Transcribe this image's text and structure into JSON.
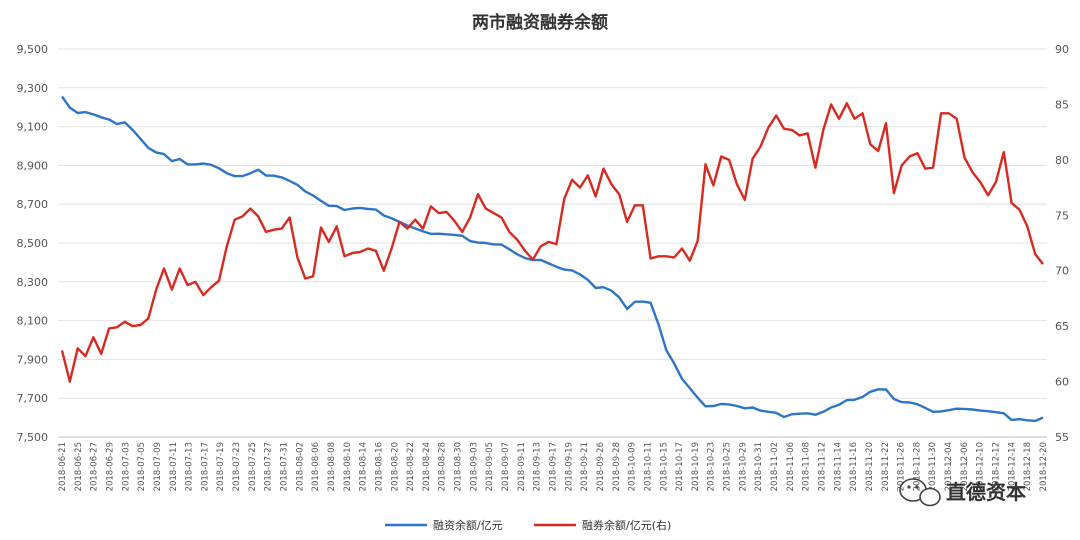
{
  "chart_data": {
    "type": "line",
    "title": "两市融资融券余额",
    "y_left": {
      "ticks": [
        "7,500",
        "7,700",
        "7,900",
        "8,100",
        "8,300",
        "8,500",
        "8,700",
        "8,900",
        "9,100",
        "9,300",
        "9,500"
      ],
      "min": 7500,
      "max": 9500
    },
    "y_right": {
      "ticks": [
        "55",
        "60",
        "65",
        "70",
        "75",
        "80",
        "85",
        "90"
      ],
      "min": 55,
      "max": 90
    },
    "grid": true,
    "legend_position": "bottom",
    "x_labels": [
      "2018-06-21",
      "2018-06-25",
      "2018-06-27",
      "2018-06-29",
      "2018-07-03",
      "2018-07-05",
      "2018-07-09",
      "2018-07-11",
      "2018-07-13",
      "2018-07-17",
      "2018-07-19",
      "2018-07-23",
      "2018-07-25",
      "2018-07-27",
      "2018-07-31",
      "2018-08-02",
      "2018-08-06",
      "2018-08-08",
      "2018-08-10",
      "2018-08-14",
      "2018-08-16",
      "2018-08-20",
      "2018-08-22",
      "2018-08-24",
      "2018-08-28",
      "2018-08-30",
      "2018-09-03",
      "2018-09-05",
      "2018-09-07",
      "2018-09-11",
      "2018-09-13",
      "2018-09-17",
      "2018-09-19",
      "2018-09-21",
      "2018-09-26",
      "2018-09-28",
      "2018-10-09",
      "2018-10-11",
      "2018-10-15",
      "2018-10-17",
      "2018-10-19",
      "2018-10-23",
      "2018-10-25",
      "2018-10-29",
      "2018-10-31",
      "2018-11-02",
      "2018-11-06",
      "2018-11-08",
      "2018-11-12",
      "2018-11-14",
      "2018-11-16",
      "2018-11-20",
      "2018-11-22",
      "2018-11-26",
      "2018-11-28",
      "2018-11-30",
      "2018-12-04",
      "2018-12-06",
      "2018-12-10",
      "2018-12-12",
      "2018-12-14",
      "2018-12-18",
      "2018-12-20"
    ],
    "series": [
      {
        "name": "融资余额/亿元",
        "axis": "left",
        "color": "#2e75c8",
        "values": [
          9255,
          9198,
          9170,
          9175,
          9163,
          9148,
          9136,
          9113,
          9122,
          9083,
          9037,
          8990,
          8967,
          8958,
          8922,
          8933,
          8905,
          8905,
          8910,
          8903,
          8885,
          8860,
          8845,
          8845,
          8860,
          8878,
          8848,
          8847,
          8838,
          8820,
          8800,
          8766,
          8745,
          8717,
          8692,
          8690,
          8670,
          8678,
          8681,
          8675,
          8672,
          8642,
          8628,
          8608,
          8590,
          8575,
          8560,
          8547,
          8548,
          8545,
          8542,
          8537,
          8510,
          8502,
          8500,
          8493,
          8492,
          8468,
          8442,
          8422,
          8412,
          8413,
          8395,
          8378,
          8363,
          8359,
          8338,
          8310,
          8268,
          8272,
          8254,
          8220,
          8160,
          8197,
          8198,
          8192,
          8082,
          7948,
          7880,
          7800,
          7752,
          7702,
          7658,
          7660,
          7670,
          7668,
          7660,
          7648,
          7652,
          7636,
          7630,
          7625,
          7603,
          7617,
          7620,
          7622,
          7615,
          7630,
          7652,
          7666,
          7690,
          7692,
          7706,
          7733,
          7746,
          7745,
          7696,
          7680,
          7678,
          7669,
          7650,
          7630,
          7632,
          7638,
          7646,
          7645,
          7642,
          7636,
          7633,
          7628,
          7622,
          7588,
          7592,
          7586,
          7583,
          7600
        ]
      },
      {
        "name": "融券余额/亿元(右)",
        "axis": "right",
        "color": "#d82a20",
        "values": [
          62.8,
          60.0,
          63.0,
          62.3,
          64.0,
          62.5,
          64.8,
          64.9,
          65.4,
          65.0,
          65.1,
          65.7,
          68.3,
          70.2,
          68.3,
          70.2,
          68.7,
          69.0,
          67.8,
          68.5,
          69.1,
          72.2,
          74.6,
          74.9,
          75.6,
          74.9,
          73.5,
          73.7,
          73.8,
          74.8,
          71.2,
          69.3,
          69.5,
          73.9,
          72.6,
          74.0,
          71.3,
          71.6,
          71.7,
          72.0,
          71.8,
          70.0,
          72.0,
          74.4,
          73.8,
          74.6,
          73.8,
          75.8,
          75.2,
          75.3,
          74.5,
          73.5,
          74.8,
          76.9,
          75.6,
          75.2,
          74.8,
          73.5,
          72.8,
          71.8,
          71.0,
          72.2,
          72.6,
          72.4,
          76.5,
          78.2,
          77.5,
          78.6,
          76.7,
          79.2,
          77.8,
          76.9,
          74.4,
          75.9,
          75.9,
          71.1,
          71.3,
          71.3,
          71.2,
          72.0,
          70.9,
          72.7,
          79.6,
          77.7,
          80.3,
          80.0,
          77.8,
          76.4,
          80.1,
          81.2,
          82.9,
          84.0,
          82.8,
          82.7,
          82.2,
          82.4,
          79.3,
          82.7,
          85.0,
          83.7,
          85.1,
          83.7,
          84.2,
          81.4,
          80.8,
          83.3,
          77.0,
          79.5,
          80.3,
          80.6,
          79.2,
          79.3,
          84.2,
          84.2,
          83.7,
          80.2,
          78.9,
          78.0,
          76.8,
          78.0,
          80.7,
          76.1,
          75.5,
          74.0,
          71.5,
          70.6
        ]
      }
    ]
  },
  "watermark": "直德资本"
}
